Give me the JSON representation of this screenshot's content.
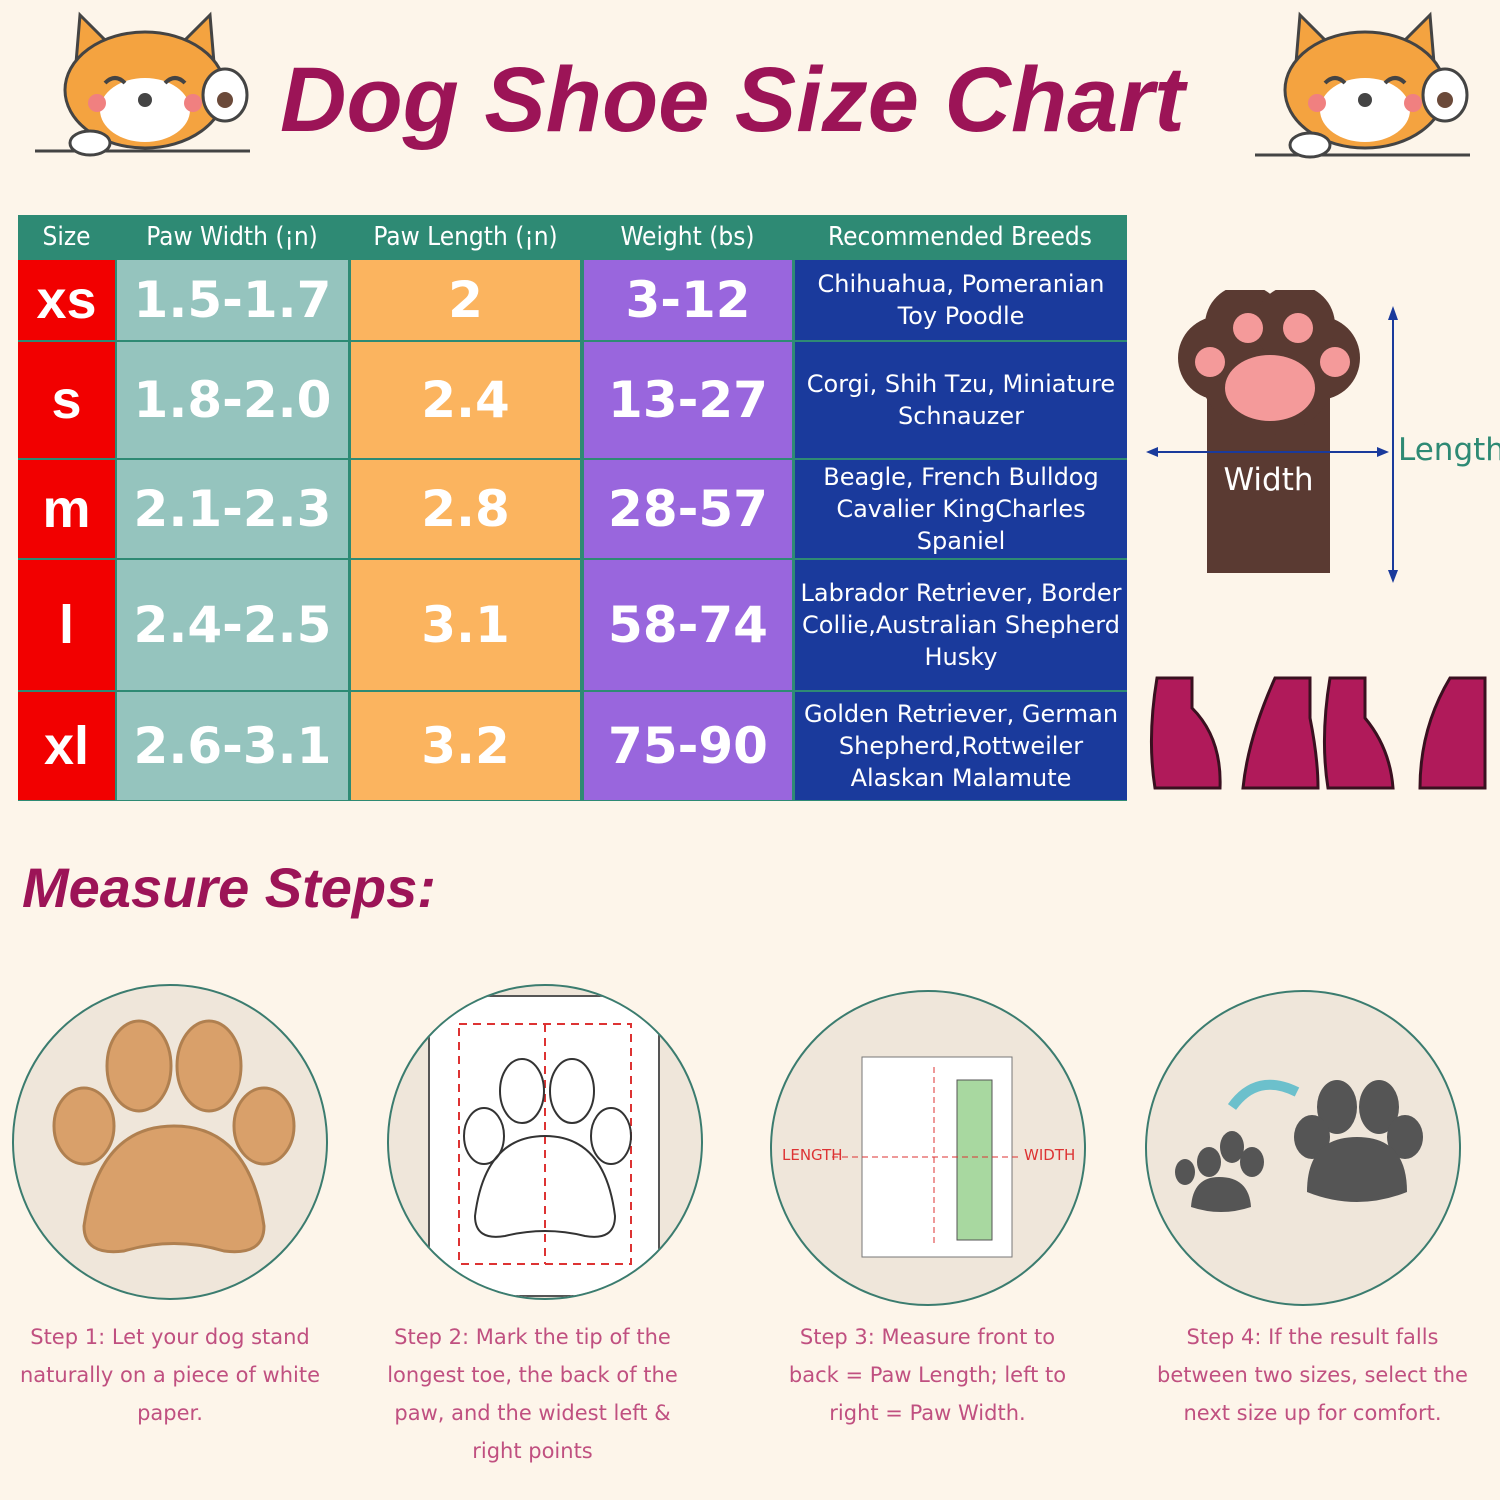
{
  "title": "Dog Shoe Size Chart",
  "table": {
    "headers": [
      "Size",
      "Paw Width (¡n)",
      "Paw Length (¡n)",
      "Weight (bs)",
      "Recommended Breeds"
    ],
    "rows": [
      {
        "size": "xs",
        "width": "1.5-1.7",
        "length": "2",
        "weight": "3-12",
        "breeds": "Chihuahua, Pomeranian Toy Poodle"
      },
      {
        "size": "s",
        "width": "1.8-2.0",
        "length": "2.4",
        "weight": "13-27",
        "breeds": "Corgi, Shih Tzu, Miniature Schnauzer"
      },
      {
        "size": "m",
        "width": "2.1-2.3",
        "length": "2.8",
        "weight": "28-57",
        "breeds": "Beagle, French Bulldog Cavalier KingCharles Spaniel"
      },
      {
        "size": "l",
        "width": "2.4-2.5",
        "length": "3.1",
        "weight": "58-74",
        "breeds": "Labrador Retriever, Border Collie,Australian Shepherd Husky"
      },
      {
        "size": "xl",
        "width": "2.6-3.1",
        "length": "3.2",
        "weight": "75-90",
        "breeds": "Golden Retriever, German Shepherd,Rottweiler Alaskan Malamute"
      }
    ]
  },
  "diagram": {
    "width_label": "Width",
    "length_label": "Length"
  },
  "measure_title": "Measure Steps:",
  "step_images": {
    "length_label": "LENGTH",
    "width_label": "WIDTH"
  },
  "steps": [
    "Step 1:  Let your dog stand naturally on a piece of white paper.",
    "Step 2:  Mark the tip of the longest toe, the back of the paw, and the widest left & right points",
    "Step 3:  Measure front to back = Paw Length; left to right = Paw Width.",
    "Step 4:  If the result falls between two sizes, select the next size up for comfort."
  ],
  "colors": {
    "title": "#9c1457",
    "header": "#2e8a74",
    "size": "#f20000",
    "width": "#95c4be",
    "length": "#fbb45f",
    "weight": "#9966dd",
    "breeds": "#1a3a9c",
    "step_text": "#c05080"
  }
}
